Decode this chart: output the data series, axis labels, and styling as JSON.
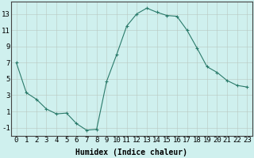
{
  "x": [
    0,
    1,
    2,
    3,
    4,
    5,
    6,
    7,
    8,
    9,
    10,
    11,
    12,
    13,
    14,
    15,
    16,
    17,
    18,
    19,
    20,
    21,
    22,
    23
  ],
  "y": [
    7,
    3.3,
    2.5,
    1.3,
    0.7,
    0.8,
    -0.5,
    -1.3,
    -1.2,
    4.7,
    8.0,
    11.5,
    13.0,
    13.7,
    13.2,
    12.8,
    12.7,
    11.0,
    8.8,
    6.5,
    5.8,
    4.8,
    4.2,
    4.0
  ],
  "line_color": "#2a7a6a",
  "marker": "+",
  "marker_size": 3,
  "bg_color": "#cff0ee",
  "grid_color_major": "#b8c8c0",
  "grid_color_minor": "#d8e8e4",
  "xlabel": "Humidex (Indice chaleur)",
  "ylabel_ticks": [
    -1,
    1,
    3,
    5,
    7,
    9,
    11,
    13
  ],
  "xlim": [
    -0.5,
    23.5
  ],
  "ylim": [
    -2.0,
    14.5
  ],
  "xlabel_fontsize": 7,
  "tick_fontsize": 6.5
}
